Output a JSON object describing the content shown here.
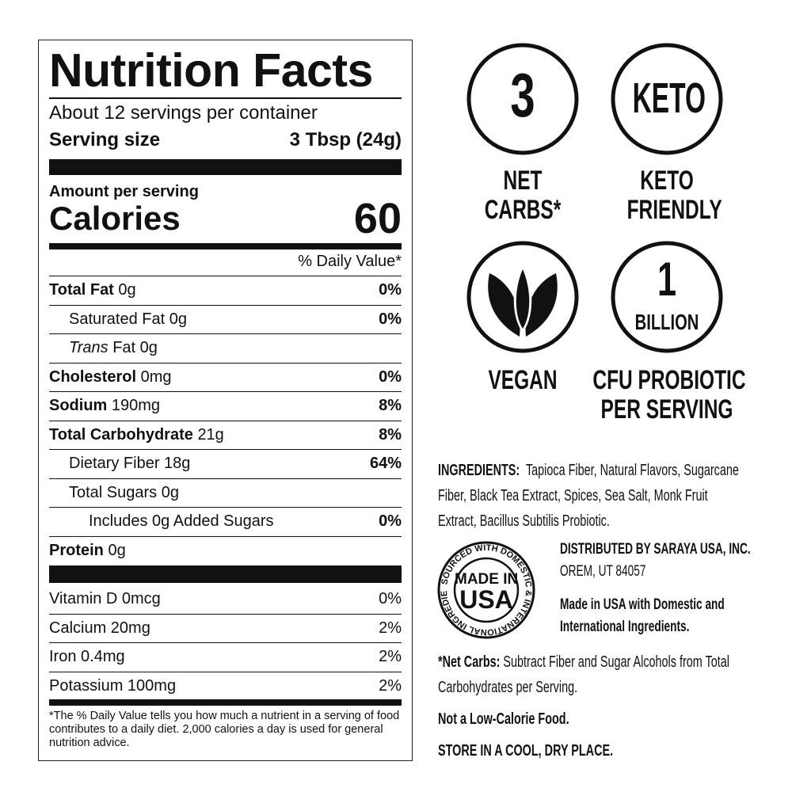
{
  "nutrition": {
    "title": "Nutrition Facts",
    "servings": "About 12 servings per container",
    "serving_size_label": "Serving size",
    "serving_size_value": "3 Tbsp (24g)",
    "amount_per_serving": "Amount per serving",
    "calories_label": "Calories",
    "calories_value": "60",
    "dv_header": "% Daily Value*",
    "rows": [
      {
        "name": "Total Fat",
        "amount": "0g",
        "dv": "0%",
        "bold": true,
        "indent": 0
      },
      {
        "name": "Saturated Fat",
        "amount": "0g",
        "dv": "0%",
        "bold": false,
        "indent": 1
      },
      {
        "name": "Trans",
        "name2": " Fat",
        "amount": "0g",
        "dv": "",
        "bold": false,
        "indent": 1,
        "italic": true
      },
      {
        "name": "Cholesterol",
        "amount": "0mg",
        "dv": "0%",
        "bold": true,
        "indent": 0
      },
      {
        "name": "Sodium",
        "amount": "190mg",
        "dv": "8%",
        "bold": true,
        "indent": 0
      },
      {
        "name": "Total Carbohydrate",
        "amount": "21g",
        "dv": "8%",
        "bold": true,
        "indent": 0
      },
      {
        "name": "Dietary Fiber",
        "amount": "18g",
        "dv": "64%",
        "bold": false,
        "indent": 1
      },
      {
        "name": "Total Sugars",
        "amount": "0g",
        "dv": "",
        "bold": false,
        "indent": 1
      },
      {
        "name": "Includes 0g Added Sugars",
        "amount": "",
        "dv": "0%",
        "bold": false,
        "indent": 2
      },
      {
        "name": "Protein",
        "amount": "0g",
        "dv": "",
        "bold": true,
        "indent": 0
      }
    ],
    "vitamins": [
      {
        "name": "Vitamin D 0mcg",
        "dv": "0%"
      },
      {
        "name": "Calcium 20mg",
        "dv": "2%"
      },
      {
        "name": "Iron 0.4mg",
        "dv": "2%"
      },
      {
        "name": "Potassium 100mg",
        "dv": "2%"
      }
    ],
    "footnote": "*The % Daily Value tells you how much a nutrient in a serving of food contributes to a daily diet. 2,000 calories a day is used for general nutrition advice."
  },
  "badges": [
    {
      "icon_text": "3",
      "label_1": "NET",
      "label_2": "CARBS*"
    },
    {
      "icon_text": "KETO",
      "label_1": "KETO",
      "label_2": "FRIENDLY"
    },
    {
      "icon": "leaf-icon",
      "label_1": "VEGAN",
      "label_2": ""
    },
    {
      "icon_text": "1",
      "icon_text_2": "BILLION",
      "label_1": "CFU PROBIOTIC",
      "label_2": "PER SERVING"
    }
  ],
  "ingredients": {
    "label": "INGREDIENTS:",
    "lines": [
      "Tapioca Fiber, Natural Flavors, Sugarcane",
      "Fiber, Black Tea Extract, Spices, Sea Salt, Monk Fruit",
      "Extract, Bacillus Subtilis Probiotic."
    ]
  },
  "seal": {
    "center_1": "MADE IN",
    "center_2": "USA",
    "ring": "SOURCED WITH DOMESTIC & INTERNATIONAL INGREDIENTS"
  },
  "distributor": {
    "line_1": "DISTRIBUTED BY SARAYA USA, INC.",
    "line_2": "OREM, UT 84057",
    "made_1": "Made in USA with Domestic and",
    "made_2": "International Ingredients."
  },
  "net_carbs_note": {
    "label": "*Net Carbs:",
    "line_1": " Subtract Fiber and Sugar Alcohols from Total",
    "line_2": "Carbohydrates per Serving."
  },
  "low_calorie": "Not a Low-Calorie Food.",
  "storage": "STORE IN A COOL, DRY PLACE."
}
